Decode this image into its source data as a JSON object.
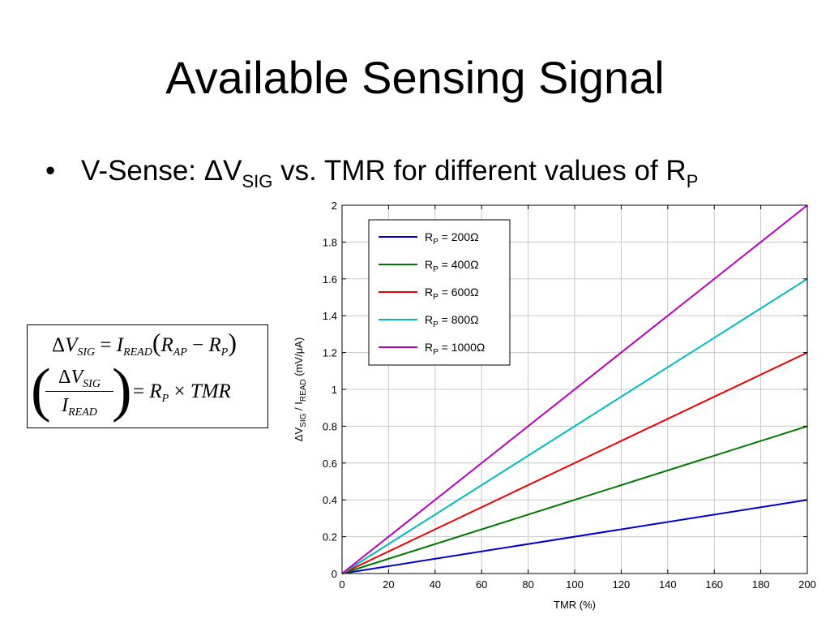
{
  "slide": {
    "title": "Available Sensing Signal",
    "bullet": {
      "marker": "•",
      "prefix": "V-Sense: ΔV",
      "sub1": "SIG",
      "middle": " vs. TMR for different values of R",
      "sub2": "P"
    },
    "formula": {
      "eq1": {
        "delta": "Δ",
        "v": "V",
        "v_sub": "SIG",
        "eq": " = ",
        "i": "I",
        "i_sub": "READ",
        "lparen": "(",
        "rap": "R",
        "rap_sub": "AP",
        "minus": " − ",
        "rp": "R",
        "rp_sub": "P",
        "rparen": ")"
      },
      "eq2": {
        "lparen": "(",
        "num_delta": "Δ",
        "num_v": "V",
        "num_sub": "SIG",
        "den_i": "I",
        "den_sub": "READ",
        "rparen": ")",
        "eq": "= ",
        "r": "R",
        "r_sub": "P",
        "times": " × ",
        "tmr": "TMR"
      }
    }
  },
  "chart_data": {
    "type": "line",
    "title": "",
    "xlabel": "TMR (%)",
    "ylabel": {
      "part1": "ΔV",
      "sub1": "SIG",
      "part2": " / I",
      "sub2": "READ",
      "part3": " (mV/μA)"
    },
    "xlim": [
      0,
      200
    ],
    "ylim": [
      0,
      2
    ],
    "xticks": [
      "0",
      "20",
      "40",
      "60",
      "80",
      "100",
      "120",
      "140",
      "160",
      "180",
      "200"
    ],
    "yticks": [
      "0",
      "0.2",
      "0.4",
      "0.6",
      "0.8",
      "1",
      "1.2",
      "1.4",
      "1.6",
      "1.8",
      "2"
    ],
    "grid": true,
    "legend_position": "top-left",
    "x": [
      0,
      200
    ],
    "series": [
      {
        "legend": {
          "r": "R",
          "sub": "P",
          "val": " = 200Ω"
        },
        "color": "#0000cc",
        "values": [
          0,
          0.4
        ]
      },
      {
        "legend": {
          "r": "R",
          "sub": "P",
          "val": " = 400Ω"
        },
        "color": "#007700",
        "values": [
          0,
          0.8
        ]
      },
      {
        "legend": {
          "r": "R",
          "sub": "P",
          "val": " = 600Ω"
        },
        "color": "#ee0000",
        "values": [
          0,
          1.2
        ]
      },
      {
        "legend": {
          "r": "R",
          "sub": "P",
          "val": " = 800Ω"
        },
        "color": "#00bbbb",
        "values": [
          0,
          1.6
        ]
      },
      {
        "legend": {
          "r": "R",
          "sub": "P",
          "val": " = 1000Ω"
        },
        "color": "#bb00bb",
        "values": [
          0,
          2.0
        ]
      }
    ]
  }
}
